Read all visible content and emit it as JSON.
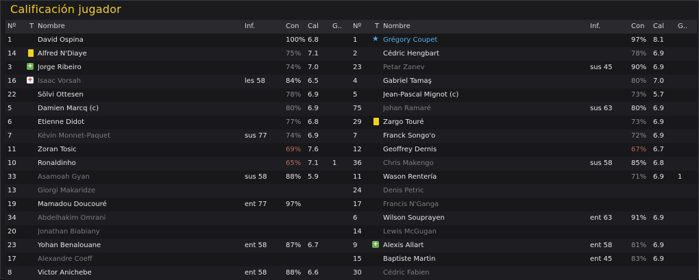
{
  "title": "Calificación jugador",
  "columns": {
    "num": "Nº",
    "t": "T",
    "name": "Nombre",
    "inf": "Inf.",
    "con": "Con",
    "cal": "Cal",
    "g": "G.."
  },
  "left": [
    {
      "num": "1",
      "icon": "",
      "name": "David Ospina",
      "inf": "",
      "con": "100%",
      "cal": "6.8",
      "g": "",
      "state": "played",
      "con_style": "normal"
    },
    {
      "num": "14",
      "icon": "yellow-card",
      "name": "Alfred N'Diaye",
      "inf": "",
      "con": "75%",
      "cal": "7.1",
      "g": "",
      "state": "played",
      "con_style": "dim"
    },
    {
      "num": "3",
      "icon": "plus",
      "name": "Jorge Ribeiro",
      "inf": "",
      "con": "74%",
      "cal": "7.0",
      "g": "",
      "state": "played",
      "con_style": "dim"
    },
    {
      "num": "16",
      "icon": "injury",
      "name": "Isaac Vorsah",
      "inf": "les 58",
      "con": "84%",
      "cal": "6.5",
      "g": "",
      "state": "unused",
      "con_style": "normal"
    },
    {
      "num": "22",
      "icon": "",
      "name": "Sölvi Ottesen",
      "inf": "",
      "con": "78%",
      "cal": "6.9",
      "g": "",
      "state": "played",
      "con_style": "dim"
    },
    {
      "num": "5",
      "icon": "",
      "name": "Damien Marcq (c)",
      "inf": "",
      "con": "80%",
      "cal": "6.9",
      "g": "",
      "state": "played",
      "con_style": "dim"
    },
    {
      "num": "6",
      "icon": "",
      "name": "Etienne Didot",
      "inf": "",
      "con": "77%",
      "cal": "6.8",
      "g": "",
      "state": "played",
      "con_style": "dim"
    },
    {
      "num": "7",
      "icon": "",
      "name": "Kévin Monnet-Paquet",
      "inf": "sus 77",
      "con": "74%",
      "cal": "6.9",
      "g": "",
      "state": "unused",
      "con_style": "dim"
    },
    {
      "num": "11",
      "icon": "",
      "name": "Zoran Tosic",
      "inf": "",
      "con": "69%",
      "cal": "7.6",
      "g": "",
      "state": "played",
      "con_style": "low"
    },
    {
      "num": "10",
      "icon": "",
      "name": "Ronaldinho",
      "inf": "",
      "con": "65%",
      "cal": "7.1",
      "g": "1",
      "state": "played",
      "con_style": "low"
    },
    {
      "num": "33",
      "icon": "",
      "name": "Asamoah Gyan",
      "inf": "sus 58",
      "con": "88%",
      "cal": "5.9",
      "g": "",
      "state": "unused",
      "con_style": "normal"
    },
    {
      "num": "13",
      "icon": "",
      "name": "Giorgi Makaridze",
      "inf": "",
      "con": "",
      "cal": "",
      "g": "",
      "state": "unused",
      "con_style": "normal"
    },
    {
      "num": "19",
      "icon": "",
      "name": "Mamadou Doucouré",
      "inf": "ent 77",
      "con": "97%",
      "cal": "",
      "g": "",
      "state": "played",
      "con_style": "normal"
    },
    {
      "num": "34",
      "icon": "",
      "name": "Abdelhakim Omrani",
      "inf": "",
      "con": "",
      "cal": "",
      "g": "",
      "state": "unused",
      "con_style": "normal"
    },
    {
      "num": "20",
      "icon": "",
      "name": "Jonathan Biabiany",
      "inf": "",
      "con": "",
      "cal": "",
      "g": "",
      "state": "unused",
      "con_style": "normal"
    },
    {
      "num": "23",
      "icon": "",
      "name": "Yohan Benalouane",
      "inf": "ent 58",
      "con": "87%",
      "cal": "6.7",
      "g": "",
      "state": "played",
      "con_style": "normal"
    },
    {
      "num": "17",
      "icon": "",
      "name": "Alexandre Coeff",
      "inf": "",
      "con": "",
      "cal": "",
      "g": "",
      "state": "unused",
      "con_style": "normal"
    },
    {
      "num": "8",
      "icon": "",
      "name": "Victor Anichebe",
      "inf": "ent 58",
      "con": "88%",
      "cal": "6.6",
      "g": "",
      "state": "played",
      "con_style": "normal"
    }
  ],
  "right": [
    {
      "num": "1",
      "icon": "star",
      "name": "Grégory Coupet",
      "inf": "",
      "con": "97%",
      "cal": "8.1",
      "g": "",
      "state": "star",
      "con_style": "normal"
    },
    {
      "num": "2",
      "icon": "",
      "name": "Cédric Hengbart",
      "inf": "",
      "con": "78%",
      "cal": "6.9",
      "g": "",
      "state": "played",
      "con_style": "dim"
    },
    {
      "num": "23",
      "icon": "",
      "name": "Petar Zanev",
      "inf": "sus 45",
      "con": "90%",
      "cal": "6.9",
      "g": "",
      "state": "unused",
      "con_style": "normal"
    },
    {
      "num": "4",
      "icon": "",
      "name": "Gabriel Tamaş",
      "inf": "",
      "con": "80%",
      "cal": "7.0",
      "g": "",
      "state": "played",
      "con_style": "dim"
    },
    {
      "num": "5",
      "icon": "",
      "name": "Jean-Pascal Mignot (c)",
      "inf": "",
      "con": "73%",
      "cal": "5.7",
      "g": "",
      "state": "played",
      "con_style": "dim"
    },
    {
      "num": "75",
      "icon": "",
      "name": "Johan Ramaré",
      "inf": "sus 63",
      "con": "80%",
      "cal": "6.9",
      "g": "",
      "state": "unused",
      "con_style": "normal"
    },
    {
      "num": "29",
      "icon": "yellow-card",
      "name": "Zargo Touré",
      "inf": "",
      "con": "73%",
      "cal": "6.9",
      "g": "",
      "state": "played",
      "con_style": "dim"
    },
    {
      "num": "7",
      "icon": "",
      "name": "Franck Songo'o",
      "inf": "",
      "con": "72%",
      "cal": "6.9",
      "g": "",
      "state": "played",
      "con_style": "dim"
    },
    {
      "num": "12",
      "icon": "",
      "name": "Geoffrey Dernis",
      "inf": "",
      "con": "67%",
      "cal": "6.7",
      "g": "",
      "state": "played",
      "con_style": "low"
    },
    {
      "num": "36",
      "icon": "",
      "name": "Chris Makengo",
      "inf": "sus 58",
      "con": "85%",
      "cal": "6.8",
      "g": "",
      "state": "unused",
      "con_style": "normal"
    },
    {
      "num": "11",
      "icon": "",
      "name": "Wason Rentería",
      "inf": "",
      "con": "71%",
      "cal": "6.9",
      "g": "1",
      "state": "played",
      "con_style": "dim"
    },
    {
      "num": "24",
      "icon": "",
      "name": "Denis Petric",
      "inf": "",
      "con": "",
      "cal": "",
      "g": "",
      "state": "unused",
      "con_style": "normal"
    },
    {
      "num": "17",
      "icon": "",
      "name": "Francis N'Ganga",
      "inf": "",
      "con": "",
      "cal": "",
      "g": "",
      "state": "unused",
      "con_style": "normal"
    },
    {
      "num": "6",
      "icon": "",
      "name": "Wilson Souprayen",
      "inf": "ent 63",
      "con": "91%",
      "cal": "6.9",
      "g": "",
      "state": "played",
      "con_style": "normal"
    },
    {
      "num": "14",
      "icon": "",
      "name": "Lewis McGugan",
      "inf": "",
      "con": "",
      "cal": "",
      "g": "",
      "state": "unused",
      "con_style": "normal"
    },
    {
      "num": "9",
      "icon": "plus",
      "name": "Alexis Allart",
      "inf": "ent 58",
      "con": "81%",
      "cal": "6.9",
      "g": "",
      "state": "played",
      "con_style": "dim"
    },
    {
      "num": "15",
      "icon": "",
      "name": "Baptiste Martin",
      "inf": "ent 45",
      "con": "83%",
      "cal": "6.9",
      "g": "",
      "state": "played",
      "con_style": "dim"
    },
    {
      "num": "30",
      "icon": "",
      "name": "Cédric Fabien",
      "inf": "",
      "con": "",
      "cal": "",
      "g": "",
      "state": "unused",
      "con_style": "normal"
    }
  ]
}
